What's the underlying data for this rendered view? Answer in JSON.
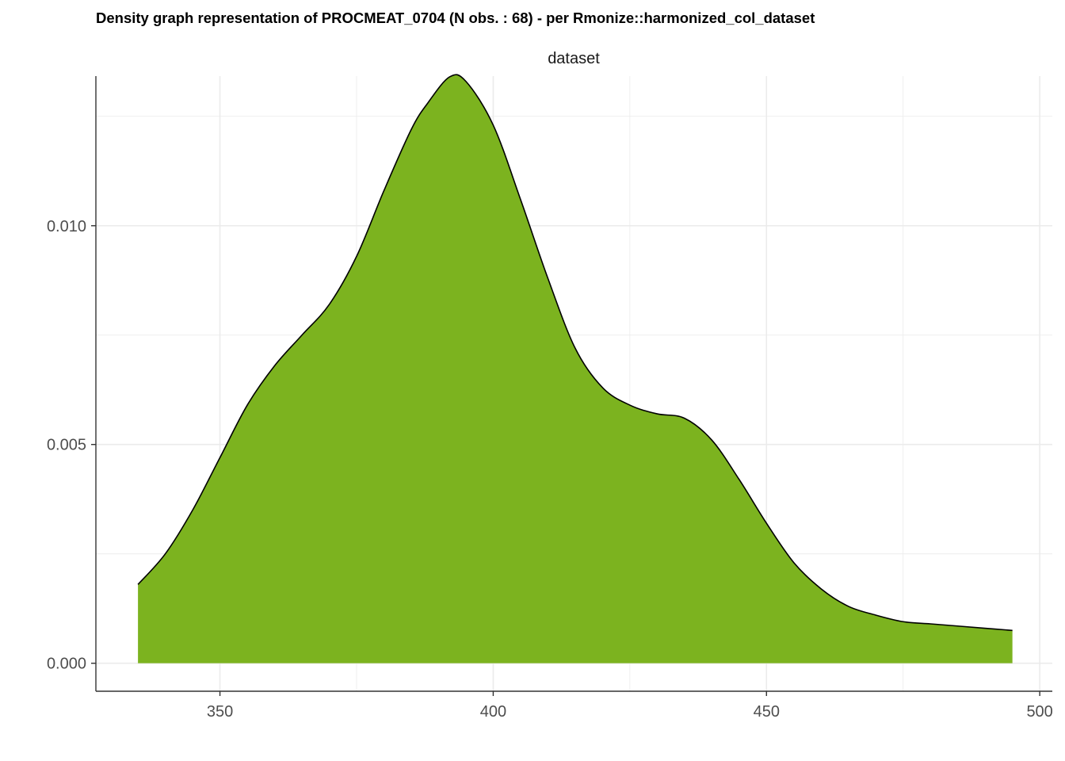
{
  "title": "Density graph representation of PROCMEAT_0704 (N obs. : 68) - per Rmonize::harmonized_col_dataset",
  "colors": {
    "fill": "#7cb31f",
    "outline": "#000000",
    "grid": "#ebebeb",
    "axis": "#333333",
    "tick_text": "#4d4d4d"
  },
  "chart_data": {
    "type": "area",
    "facet_label": "dataset",
    "xlabel": "",
    "ylabel": "",
    "xlim": [
      327.3,
      502.3
    ],
    "ylim": [
      -0.00064,
      0.01342
    ],
    "x_ticks": [
      350,
      400,
      450,
      500
    ],
    "x_tick_labels": [
      "350",
      "400",
      "450",
      "500"
    ],
    "x_minor": [
      375,
      425,
      475
    ],
    "y_ticks": [
      0.0,
      0.005,
      0.01
    ],
    "y_tick_labels": [
      "0.000",
      "0.005",
      "0.010"
    ],
    "y_minor": [
      0.0025,
      0.0075,
      0.0125
    ],
    "grid": true,
    "legend": "none",
    "series": [
      {
        "x": [
          335,
          340,
          345,
          350,
          355,
          360,
          365,
          370,
          375,
          380,
          385,
          388,
          392,
          395,
          400,
          405,
          410,
          415,
          420,
          425,
          430,
          435,
          440,
          445,
          450,
          455,
          460,
          465,
          470,
          475,
          480,
          485,
          490,
          495
        ],
        "y": [
          0.0018,
          0.0025,
          0.0035,
          0.0047,
          0.0059,
          0.0068,
          0.0075,
          0.0082,
          0.0093,
          0.0108,
          0.0122,
          0.0128,
          0.0134,
          0.0133,
          0.0123,
          0.0106,
          0.0088,
          0.0072,
          0.0063,
          0.0059,
          0.0057,
          0.0056,
          0.0051,
          0.0042,
          0.0032,
          0.0023,
          0.0017,
          0.0013,
          0.0011,
          0.00095,
          0.0009,
          0.00085,
          0.0008,
          0.00075
        ]
      }
    ]
  }
}
